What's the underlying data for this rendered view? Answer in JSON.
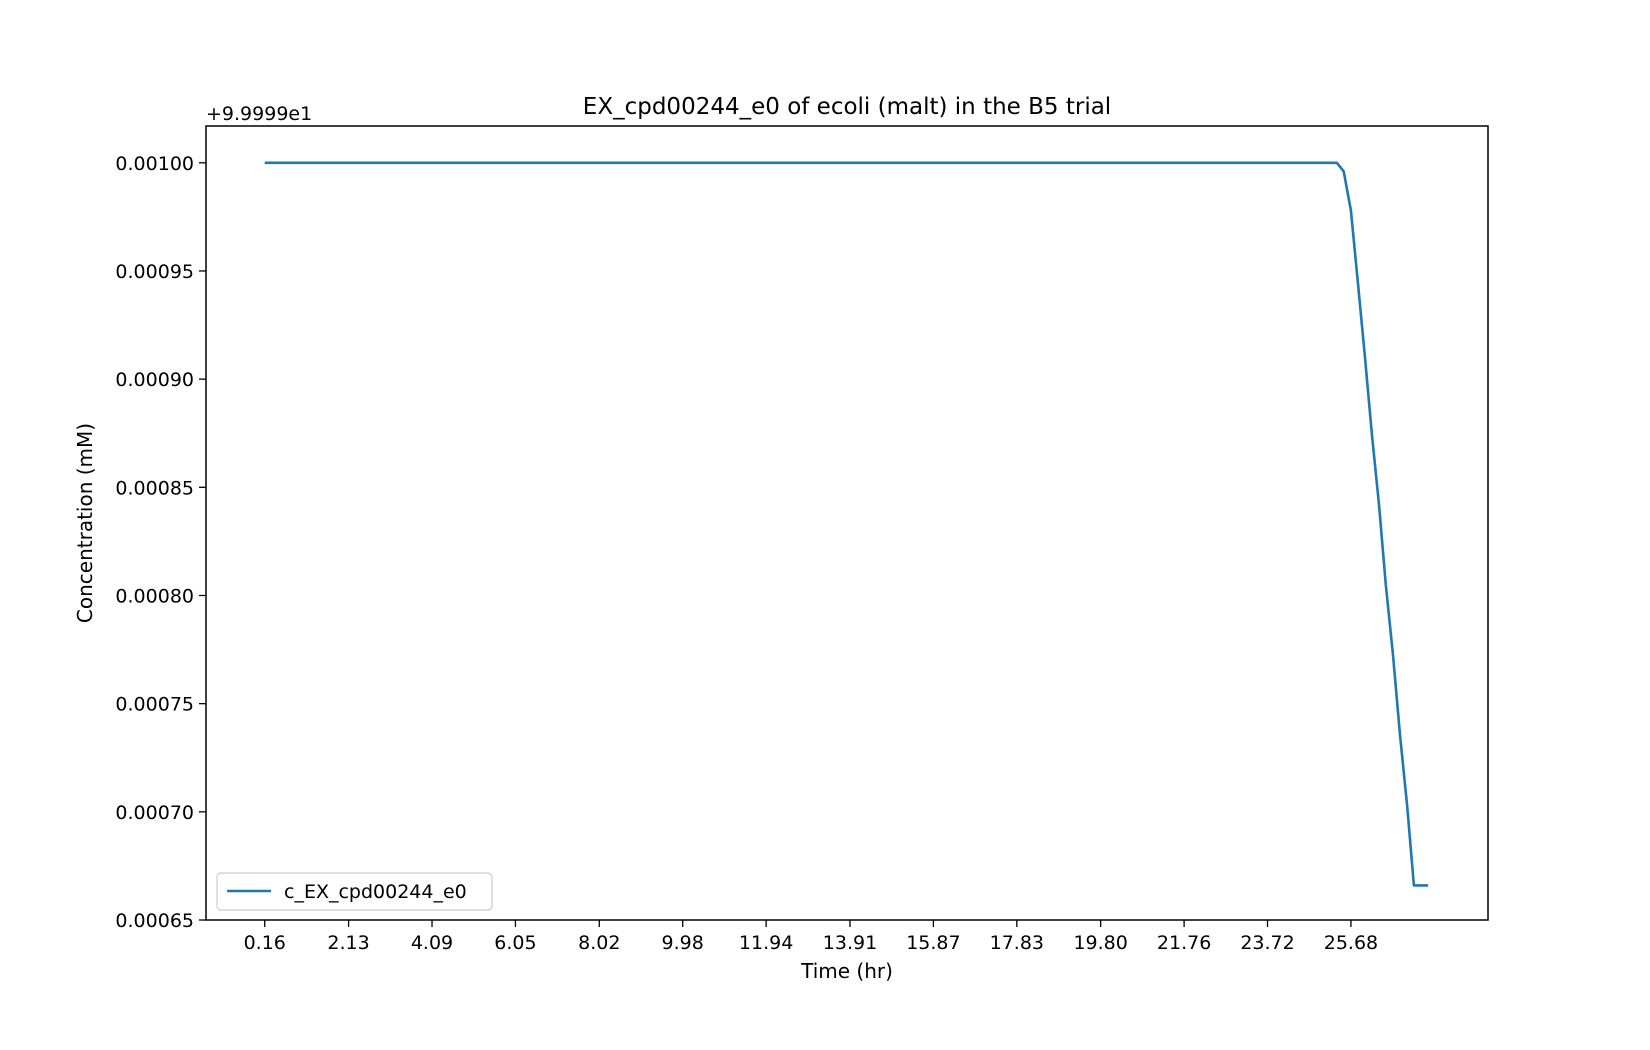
{
  "chart_data": {
    "type": "line",
    "title": "EX_cpd00244_e0 of ecoli (malt) in the B5 trial",
    "xlabel": "Time (hr)",
    "ylabel": "Concentration (mM)",
    "y_offset_label": "+9.9999e1",
    "xlim": [
      -1.22,
      28.9
    ],
    "ylim": [
      0.00065,
      0.001017
    ],
    "x_ticks": [
      0.16,
      2.13,
      4.09,
      6.05,
      8.02,
      9.98,
      11.94,
      13.91,
      15.87,
      17.83,
      19.8,
      21.76,
      23.72,
      25.68
    ],
    "x_tick_labels": [
      "0.16",
      "2.13",
      "4.09",
      "6.05",
      "8.02",
      "9.98",
      "11.94",
      "13.91",
      "15.87",
      "17.83",
      "19.80",
      "21.76",
      "23.72",
      "25.68"
    ],
    "y_ticks": [
      0.00065,
      0.0007,
      0.00075,
      0.0008,
      0.00085,
      0.0009,
      0.00095,
      0.001
    ],
    "y_tick_labels": [
      "0.00065",
      "0.00070",
      "0.00075",
      "0.00080",
      "0.00085",
      "0.00090",
      "0.00095",
      "0.00100"
    ],
    "grid": false,
    "legend": {
      "placement": "lower-left"
    },
    "colors": {
      "series": "#1f77b4",
      "axes": "#000000"
    },
    "series": [
      {
        "name": "c_EX_cpd00244_e0",
        "x": [
          0.16,
          25.35,
          25.51,
          25.68,
          25.84,
          26.01,
          26.17,
          26.34,
          26.5,
          26.67,
          26.83,
          27.0,
          27.16,
          27.32,
          27.49
        ],
        "values": [
          0.001,
          0.001,
          0.000996,
          0.000978,
          0.000945,
          0.00091,
          0.000875,
          0.000842,
          0.000805,
          0.000772,
          0.000736,
          0.000703,
          0.000666,
          0.000666,
          0.000666
        ]
      }
    ]
  }
}
